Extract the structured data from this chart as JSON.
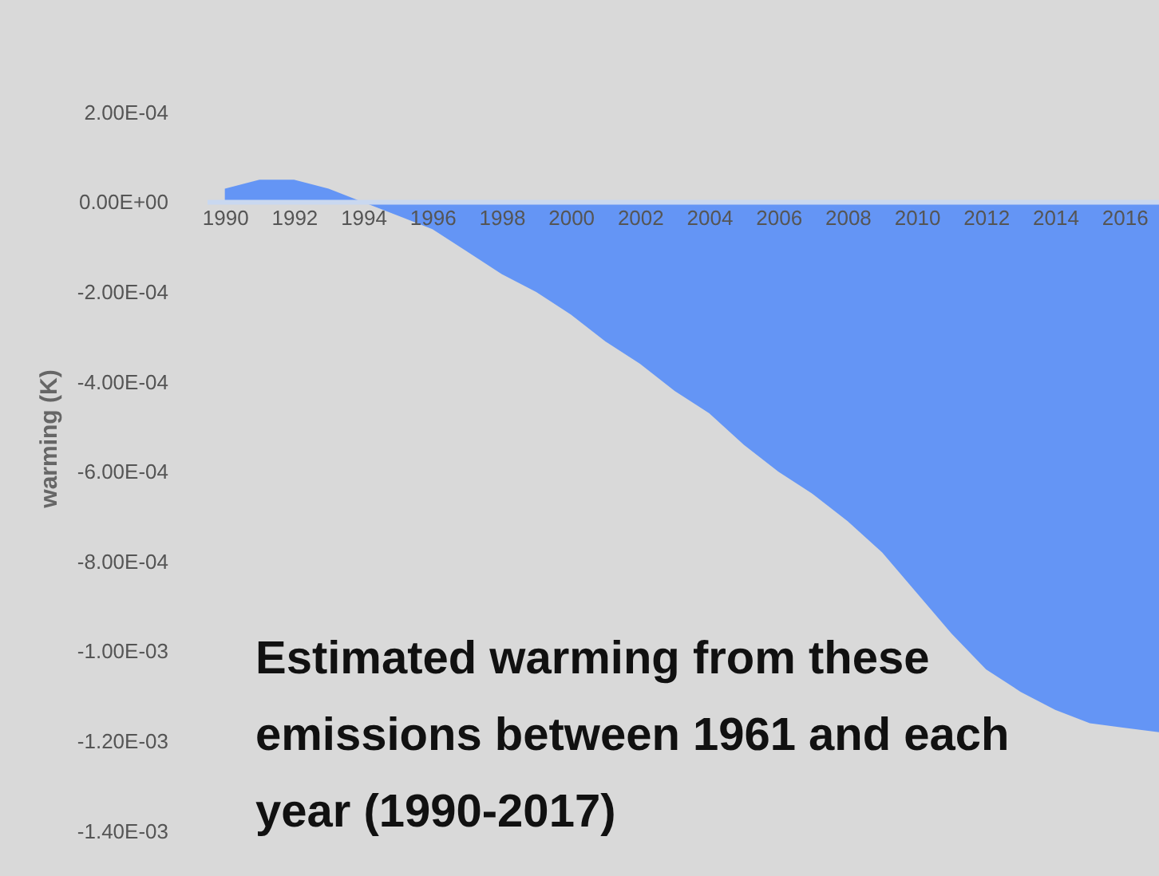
{
  "chart_data": {
    "type": "area",
    "ylabel": "warming (K)",
    "x": [
      1990,
      1991,
      1992,
      1993,
      1994,
      1995,
      1996,
      1997,
      1998,
      1999,
      2000,
      2001,
      2002,
      2003,
      2004,
      2005,
      2006,
      2007,
      2008,
      2009,
      2010,
      2011,
      2012,
      2013,
      2014,
      2015,
      2016,
      2017
    ],
    "series": [
      {
        "color": "#6495f5",
        "values": [
          3e-05,
          5e-05,
          5e-05,
          3e-05,
          0,
          -3e-05,
          -6e-05,
          -0.00011,
          -0.00016,
          -0.0002,
          -0.00025,
          -0.00031,
          -0.00036,
          -0.00042,
          -0.00047,
          -0.00054,
          -0.0006,
          -0.00065,
          -0.00071,
          -0.00078,
          -0.00087,
          -0.00096,
          -0.00104,
          -0.00109,
          -0.00113,
          -0.00116,
          -0.00117,
          -0.00118
        ]
      }
    ],
    "xlim": [
      1989.5,
      2017
    ],
    "xticks": [
      1990,
      1992,
      1994,
      1996,
      1998,
      2000,
      2002,
      2004,
      2006,
      2008,
      2010,
      2012,
      2014,
      2016
    ],
    "ylim": [
      -0.0015,
      0.00045
    ],
    "yticks": [
      {
        "value": 0.0002,
        "label": "2.00E-04"
      },
      {
        "value": 0,
        "label": "0.00E+00"
      },
      {
        "value": -0.0002,
        "label": "-2.00E-04"
      },
      {
        "value": -0.0004,
        "label": "-4.00E-04"
      },
      {
        "value": -0.0006,
        "label": "-6.00E-04"
      },
      {
        "value": -0.0008,
        "label": "-8.00E-04"
      },
      {
        "value": -0.001,
        "label": "-1.00E-03"
      },
      {
        "value": -0.0012,
        "label": "-1.20E-03"
      },
      {
        "value": -0.0014,
        "label": "-1.40E-03"
      }
    ],
    "grid": false,
    "annotations": [
      "Estimated warming from these emissions between 1961 and each year (1990-2017)"
    ]
  }
}
